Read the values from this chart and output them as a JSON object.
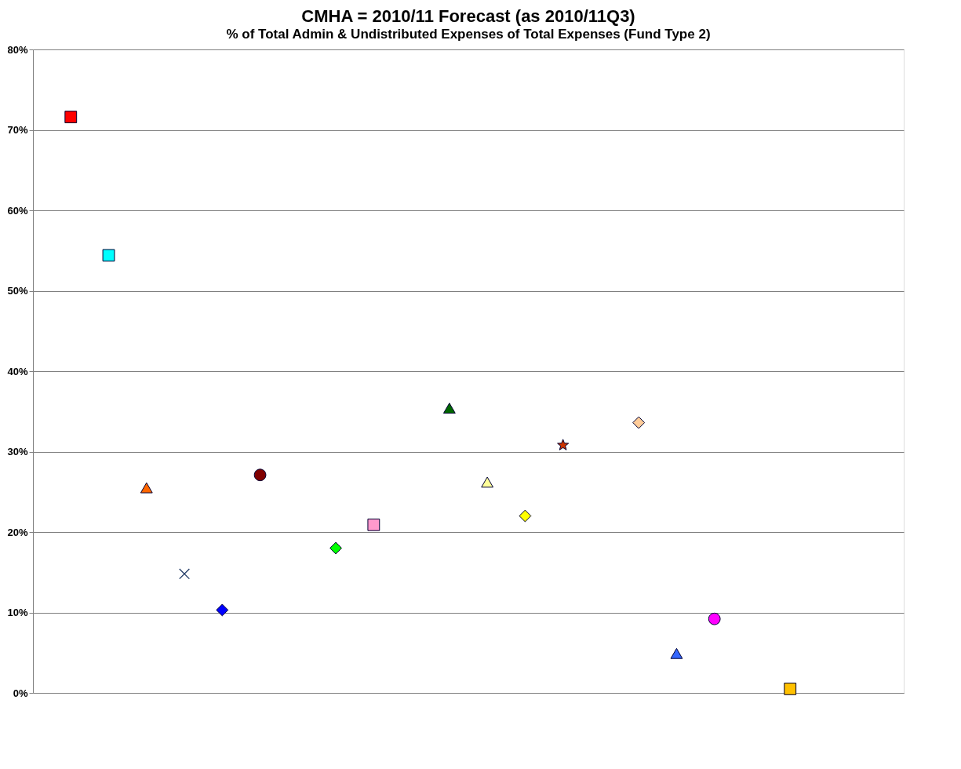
{
  "chart_data": {
    "type": "scatter",
    "title": "CMHA = 2010/11 Forecast (as 2010/11Q3)",
    "subtitle": "% of Total Admin & Undistributed Expenses of Total Expenses (Fund Type 2)",
    "categories": [
      null,
      null,
      null,
      null,
      null,
      null,
      null,
      null,
      null,
      null,
      null,
      null,
      null,
      null,
      null,
      null,
      null,
      null,
      null,
      null,
      null,
      null
    ],
    "ylim": [
      0,
      80
    ],
    "yticks": [
      {
        "value": 0,
        "label": "0%"
      },
      {
        "value": 10,
        "label": "10%"
      },
      {
        "value": 20,
        "label": "20%"
      },
      {
        "value": 30,
        "label": "30%"
      },
      {
        "value": 40,
        "label": "40%"
      },
      {
        "value": 50,
        "label": "50%"
      },
      {
        "value": 60,
        "label": "60%"
      },
      {
        "value": 70,
        "label": "70%"
      },
      {
        "value": 80,
        "label": "80%"
      }
    ],
    "grid": "y",
    "tick_labels": "y",
    "series": [
      {
        "color": "#ff0000",
        "marker": "square",
        "values": [
          71.6,
          null,
          null,
          null,
          null,
          null,
          null,
          null,
          null,
          null,
          null,
          null,
          null,
          null,
          null,
          null,
          null,
          null,
          null,
          null,
          null,
          null
        ]
      },
      {
        "color": "#00ffff",
        "marker": "square",
        "values": [
          null,
          54.4,
          null,
          null,
          null,
          null,
          null,
          null,
          null,
          null,
          null,
          null,
          null,
          null,
          null,
          null,
          null,
          null,
          null,
          null,
          null,
          null
        ]
      },
      {
        "color": "#ff6600",
        "marker": "triangle",
        "values": [
          null,
          null,
          25.5,
          null,
          null,
          null,
          null,
          null,
          null,
          null,
          null,
          null,
          null,
          null,
          null,
          null,
          null,
          null,
          null,
          null,
          null,
          null
        ]
      },
      {
        "color": "#1f3864",
        "marker": "cross",
        "values": [
          null,
          null,
          null,
          14.8,
          null,
          null,
          null,
          null,
          null,
          null,
          null,
          null,
          null,
          null,
          null,
          null,
          null,
          null,
          null,
          null,
          null,
          null
        ]
      },
      {
        "color": "#0000ff",
        "marker": "diamond",
        "values": [
          null,
          null,
          null,
          null,
          10.3,
          null,
          null,
          null,
          null,
          null,
          null,
          null,
          null,
          null,
          null,
          null,
          null,
          null,
          null,
          null,
          null,
          null
        ]
      },
      {
        "color": "#800000",
        "marker": "circle",
        "values": [
          null,
          null,
          null,
          null,
          null,
          27.1,
          null,
          null,
          null,
          null,
          null,
          null,
          null,
          null,
          null,
          null,
          null,
          null,
          null,
          null,
          null,
          null
        ]
      },
      {
        "color": "#00ff00",
        "marker": "diamond",
        "values": [
          null,
          null,
          null,
          null,
          null,
          null,
          null,
          18.0,
          null,
          null,
          null,
          null,
          null,
          null,
          null,
          null,
          null,
          null,
          null,
          null,
          null,
          null
        ]
      },
      {
        "color": "#ff99cc",
        "marker": "square",
        "values": [
          null,
          null,
          null,
          null,
          null,
          null,
          null,
          null,
          20.9,
          null,
          null,
          null,
          null,
          null,
          null,
          null,
          null,
          null,
          null,
          null,
          null,
          null
        ]
      },
      {
        "color": "#006600",
        "marker": "triangle",
        "values": [
          null,
          null,
          null,
          null,
          null,
          null,
          null,
          null,
          null,
          null,
          35.4,
          null,
          null,
          null,
          null,
          null,
          null,
          null,
          null,
          null,
          null,
          null
        ]
      },
      {
        "color": "#ffff99",
        "marker": "triangle",
        "values": [
          null,
          null,
          null,
          null,
          null,
          null,
          null,
          null,
          null,
          null,
          null,
          26.2,
          null,
          null,
          null,
          null,
          null,
          null,
          null,
          null,
          null,
          null
        ]
      },
      {
        "color": "#ffff00",
        "marker": "diamond",
        "values": [
          null,
          null,
          null,
          null,
          null,
          null,
          null,
          null,
          null,
          null,
          null,
          null,
          22.0,
          null,
          null,
          null,
          null,
          null,
          null,
          null,
          null,
          null
        ]
      },
      {
        "color": "#cc3300",
        "marker": "star",
        "values": [
          null,
          null,
          null,
          null,
          null,
          null,
          null,
          null,
          null,
          null,
          null,
          null,
          null,
          30.8,
          null,
          null,
          null,
          null,
          null,
          null,
          null,
          null
        ]
      },
      {
        "color": "#ffcc99",
        "marker": "diamond",
        "values": [
          null,
          null,
          null,
          null,
          null,
          null,
          null,
          null,
          null,
          null,
          null,
          null,
          null,
          null,
          null,
          33.6,
          null,
          null,
          null,
          null,
          null,
          null
        ]
      },
      {
        "color": "#3366ff",
        "marker": "triangle",
        "values": [
          null,
          null,
          null,
          null,
          null,
          null,
          null,
          null,
          null,
          null,
          null,
          null,
          null,
          null,
          null,
          null,
          4.9,
          null,
          null,
          null,
          null,
          null
        ]
      },
      {
        "color": "#ff00ff",
        "marker": "circle",
        "values": [
          null,
          null,
          null,
          null,
          null,
          null,
          null,
          null,
          null,
          null,
          null,
          null,
          null,
          null,
          null,
          null,
          null,
          9.2,
          null,
          null,
          null,
          null
        ]
      },
      {
        "color": "#ffc000",
        "marker": "square",
        "values": [
          null,
          null,
          null,
          null,
          null,
          null,
          null,
          null,
          null,
          null,
          null,
          null,
          null,
          null,
          null,
          null,
          null,
          null,
          null,
          0.5,
          null,
          null
        ]
      }
    ]
  }
}
